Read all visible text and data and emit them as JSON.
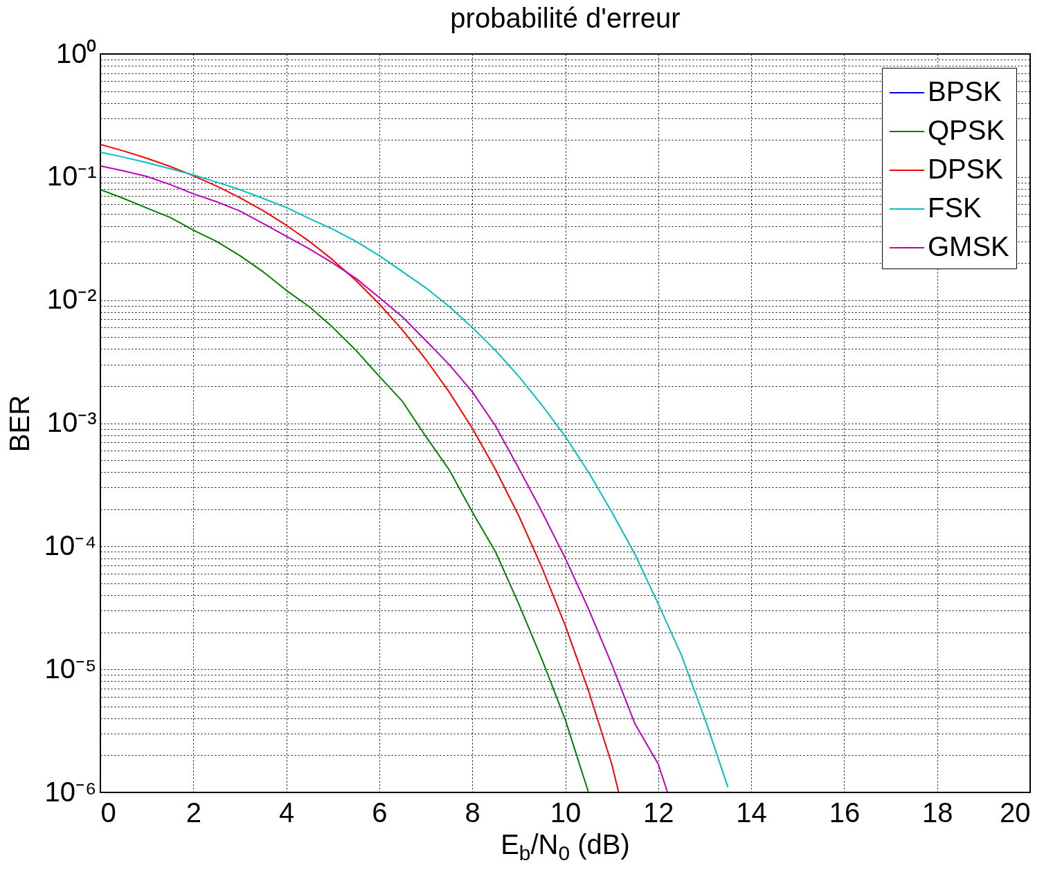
{
  "chart_data": {
    "type": "line",
    "title": "probabilité d'erreur",
    "xlabel": "E$_{b}$/N$_{0}$ (dB)",
    "ylabel": "BER",
    "log": true,
    "grid": true,
    "legend": "top right",
    "xlim": [
      0,
      20
    ],
    "xticks": [
      0,
      2,
      4,
      6,
      8,
      10,
      12,
      14,
      16,
      18,
      20
    ],
    "ylim": [
      1e-06,
      1
    ],
    "yticks": [
      {
        "value": 1e-06,
        "label": "10⁻⁶"
      },
      {
        "value": 2e-06,
        "label": null
      },
      {
        "value": 3e-06,
        "label": null
      },
      {
        "value": 4e-06,
        "label": null
      },
      {
        "value": 5e-06,
        "label": null
      },
      {
        "value": 6e-06,
        "label": null
      },
      {
        "value": 7e-06,
        "label": null
      },
      {
        "value": 8e-06,
        "label": null
      },
      {
        "value": 9e-06,
        "label": null
      },
      {
        "value": 1e-05,
        "label": "10⁻⁵"
      },
      {
        "value": 2e-05,
        "label": null
      },
      {
        "value": 3e-05,
        "label": null
      },
      {
        "value": 4e-05,
        "label": null
      },
      {
        "value": 5e-05,
        "label": null
      },
      {
        "value": 6e-05,
        "label": null
      },
      {
        "value": 7e-05,
        "label": null
      },
      {
        "value": 8e-05,
        "label": null
      },
      {
        "value": 9e-05,
        "label": null
      },
      {
        "value": 0.0001,
        "label": "10⁻⁴"
      },
      {
        "value": 0.0002,
        "label": null
      },
      {
        "value": 0.0003,
        "label": null
      },
      {
        "value": 0.0004,
        "label": null
      },
      {
        "value": 0.0005,
        "label": null
      },
      {
        "value": 0.0006,
        "label": null
      },
      {
        "value": 0.0007,
        "label": null
      },
      {
        "value": 0.0008,
        "label": null
      },
      {
        "value": 0.0009,
        "label": null
      },
      {
        "value": 0.001,
        "label": "10⁻³"
      },
      {
        "value": 0.002,
        "label": null
      },
      {
        "value": 0.003,
        "label": null
      },
      {
        "value": 0.004,
        "label": null
      },
      {
        "value": 0.005,
        "label": null
      },
      {
        "value": 0.006,
        "label": null
      },
      {
        "value": 0.007,
        "label": null
      },
      {
        "value": 0.008,
        "label": null
      },
      {
        "value": 0.009,
        "label": null
      },
      {
        "value": 0.01,
        "label": "10⁻²"
      },
      {
        "value": 0.02,
        "label": null
      },
      {
        "value": 0.03,
        "label": null
      },
      {
        "value": 0.04,
        "label": null
      },
      {
        "value": 0.05,
        "label": null
      },
      {
        "value": 0.06,
        "label": null
      },
      {
        "value": 0.07,
        "label": null
      },
      {
        "value": 0.08,
        "label": null
      },
      {
        "value": 0.09,
        "label": null
      },
      {
        "value": 0.1,
        "label": "10⁻¹"
      },
      {
        "value": 0.2,
        "label": null
      },
      {
        "value": 0.3,
        "label": null
      },
      {
        "value": 0.4,
        "label": null
      },
      {
        "value": 0.5,
        "label": null
      },
      {
        "value": 0.6,
        "label": null
      },
      {
        "value": 0.7,
        "label": null
      },
      {
        "value": 0.8,
        "label": null
      },
      {
        "value": 0.9,
        "label": null
      },
      {
        "value": 1,
        "label": "10⁰"
      }
    ],
    "series": [
      {
        "name": "BPSK",
        "color": "#0000ff"
      },
      {
        "name": "QPSK",
        "color": "#007f00",
        "x": [
          0,
          0.5,
          1,
          1.5,
          2,
          2.5,
          3,
          3.5,
          4,
          4.5,
          5,
          5.5,
          6,
          6.5,
          7,
          7.5,
          8,
          8.5,
          9,
          9.5,
          10,
          10.5
        ],
        "values": [
          0.079,
          0.067,
          0.056,
          0.047,
          0.037,
          0.03,
          0.023,
          0.017,
          0.012,
          0.0088,
          0.006,
          0.0039,
          0.0024,
          0.0015,
          0.00078,
          0.00042,
          0.00019,
          9e-05,
          3.4e-05,
          1.2e-05,
          3.9e-06,
          1e-06
        ]
      },
      {
        "name": "DPSK",
        "color": "#ff0000",
        "x": [
          0,
          0.5,
          1,
          1.5,
          2,
          2.5,
          3,
          3.5,
          4,
          4.5,
          5,
          5.5,
          6,
          6.5,
          7,
          7.5,
          8,
          8.5,
          9,
          9.5,
          10,
          10.5,
          11,
          11.15
        ],
        "values": [
          0.184,
          0.163,
          0.142,
          0.122,
          0.1025,
          0.0845,
          0.068,
          0.0533,
          0.0406,
          0.0299,
          0.0212,
          0.0144,
          0.0093,
          0.0057,
          0.0033,
          0.0018,
          0.00091,
          0.00042,
          0.000177,
          6.7e-05,
          2.27e-05,
          6.7e-06,
          1.7e-06,
          1e-06
        ]
      },
      {
        "name": "FSK",
        "color": "#00bfbf",
        "x": [
          0,
          0.5,
          1,
          1.5,
          2,
          2.5,
          3,
          3.5,
          4,
          4.5,
          5,
          5.5,
          6,
          6.5,
          7,
          7.5,
          8,
          8.5,
          9,
          9.5,
          10,
          10.5,
          11,
          11.5,
          12,
          12.5,
          13,
          13.5
        ],
        "values": [
          0.159,
          0.145,
          0.131,
          0.117,
          0.104,
          0.091,
          0.079,
          0.067,
          0.0565,
          0.046,
          0.0377,
          0.03,
          0.023,
          0.017,
          0.0126,
          0.0089,
          0.006,
          0.0039,
          0.0024,
          0.0014,
          0.00078,
          0.0004,
          0.00019,
          8.6e-05,
          3.4e-05,
          1.3e-05,
          4e-06,
          1.1e-06
        ]
      },
      {
        "name": "GMSK",
        "color": "#bf00bf",
        "x": [
          0,
          0.5,
          1,
          1.5,
          2,
          2.5,
          3,
          3.5,
          4,
          4.5,
          5,
          5.5,
          6,
          6.5,
          7,
          7.5,
          8,
          8.5,
          9,
          9.5,
          10,
          10.5,
          11,
          11.5,
          12,
          12.2
        ],
        "values": [
          0.123,
          0.112,
          0.101,
          0.087,
          0.073,
          0.063,
          0.053,
          0.042,
          0.033,
          0.026,
          0.02,
          0.015,
          0.0105,
          0.0073,
          0.0047,
          0.003,
          0.0018,
          0.00095,
          0.00043,
          0.00019,
          8e-05,
          3.1e-05,
          1.1e-05,
          3.6e-06,
          1.7e-06,
          1e-06
        ]
      }
    ]
  }
}
